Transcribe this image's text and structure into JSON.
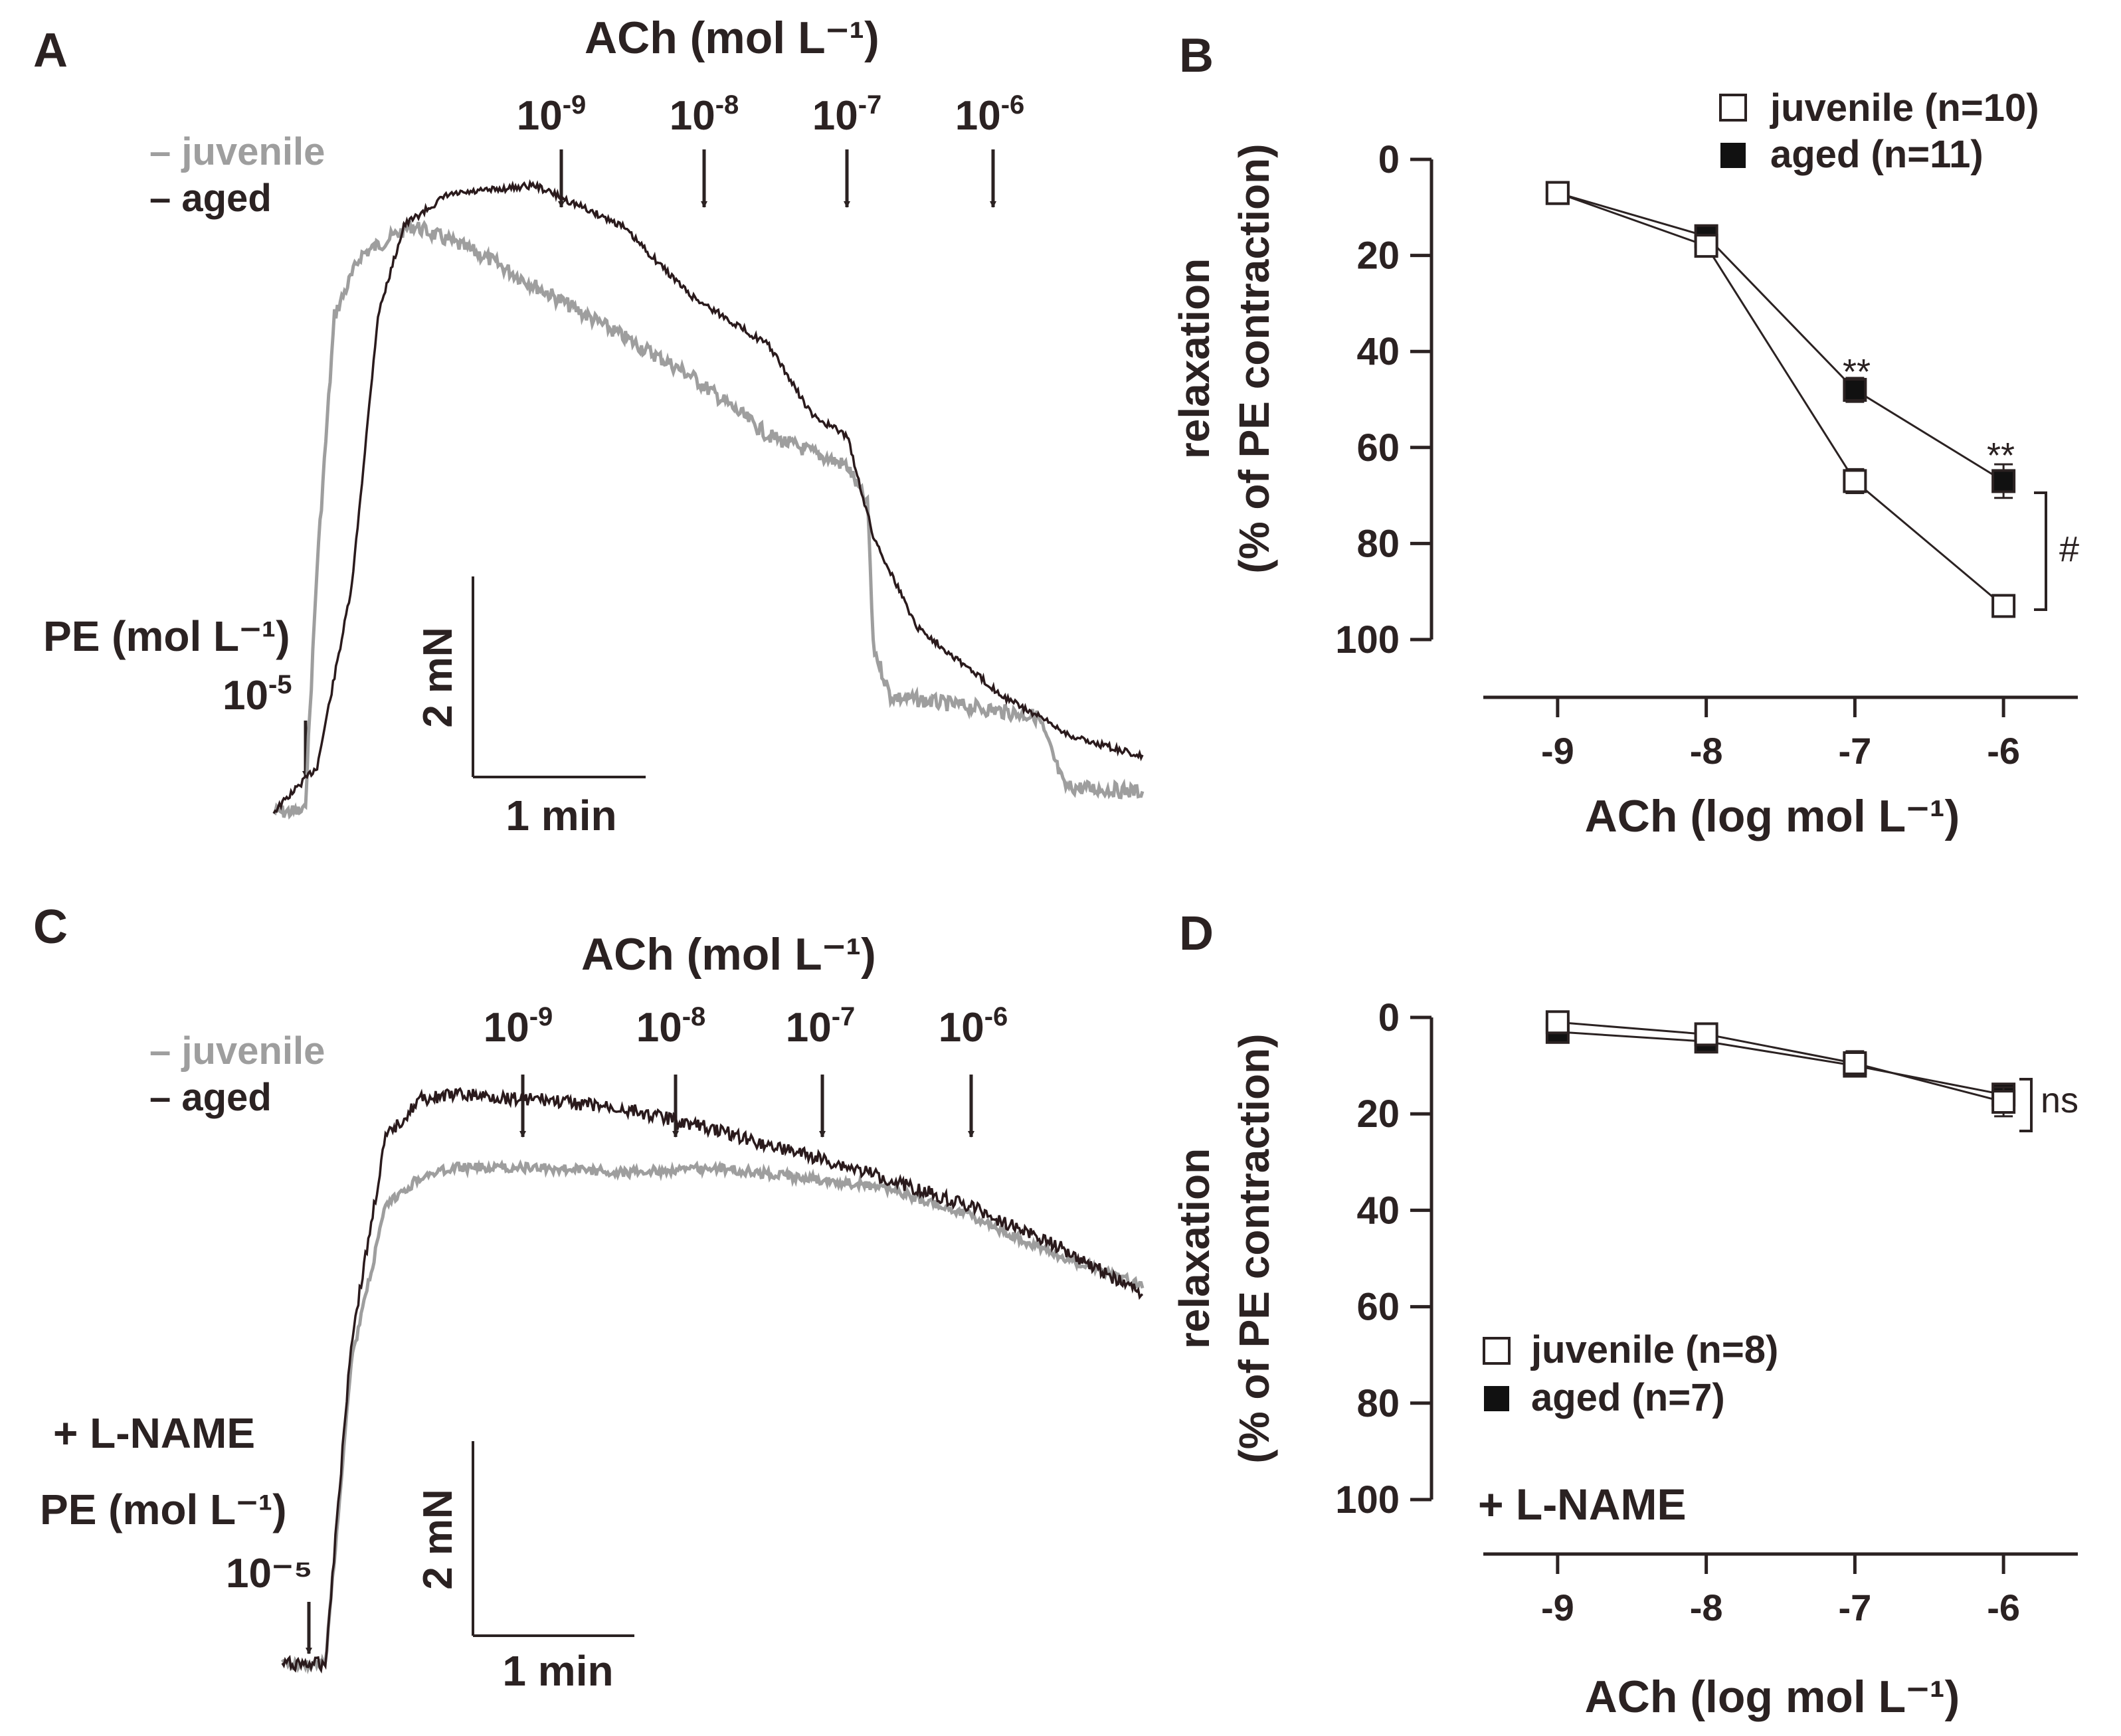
{
  "colors": {
    "juvenile": "#9e9e9e",
    "aged": "#2a1a1c",
    "text": "#2b2222"
  },
  "panels": {
    "A": {
      "letter": "A",
      "ach_title": "ACh (mol L⁻¹)",
      "ach_doses": [
        "10-9",
        "10-8",
        "10-7",
        "10-6"
      ],
      "legend": [
        "– juvenile",
        "– aged"
      ],
      "pe_label": "PE (mol L⁻¹)",
      "pe_dose": "10-5",
      "scale_y": "2 mN",
      "scale_x": "1 min"
    },
    "C": {
      "letter": "C",
      "ach_title": "ACh (mol L⁻¹)",
      "ach_doses": [
        "10-9",
        "10-8",
        "10-7",
        "10-6"
      ],
      "legend": [
        "– juvenile",
        "– aged"
      ],
      "treatment": "+ L-NAME",
      "pe_label": "PE (mol L⁻¹)",
      "pe_dose": "10⁻⁵",
      "scale_y": "2 mN",
      "scale_x": "1 min"
    },
    "B": {
      "letter": "B",
      "ylabel_line1": "relaxation",
      "ylabel_line2": "(% of PE contraction)",
      "xlabel": "ACh (log mol L⁻¹)",
      "legend": [
        "juvenile (n=10)",
        "aged (n=11)"
      ],
      "sig_stars": [
        "**",
        "**"
      ],
      "sig_bracket": "#"
    },
    "D": {
      "letter": "D",
      "ylabel_line1": "relaxation",
      "ylabel_line2": "(% of PE contraction)",
      "xlabel": "ACh (log mol L⁻¹)",
      "legend": [
        "juvenile (n=8)",
        "aged (n=7)"
      ],
      "treatment": "+ L-NAME",
      "sig_bracket": "ns"
    }
  },
  "chart_data": [
    {
      "panel": "A",
      "type": "line",
      "x_unit": "min",
      "y_unit": "mN",
      "series": [
        {
          "name": "juvenile",
          "x": [
            0,
            0.18,
            0.25,
            0.35,
            0.5,
            0.8,
            1.2,
            1.6,
            2.0,
            2.4,
            2.85,
            3.3,
            3.42,
            3.45,
            3.55,
            4.0,
            4.4,
            4.55,
            5.0
          ],
          "y": [
            0.05,
            0.05,
            2.5,
            5.0,
            5.6,
            5.9,
            5.6,
            5.2,
            4.8,
            4.4,
            3.8,
            3.5,
            3.1,
            1.7,
            1.2,
            1.1,
            1.0,
            0.3,
            0.25
          ]
        },
        {
          "name": "aged",
          "x": [
            0,
            0.25,
            0.45,
            0.6,
            0.75,
            1.0,
            1.5,
            2.0,
            2.4,
            2.85,
            3.1,
            3.3,
            3.45,
            3.7,
            4.2,
            4.6,
            5.0
          ],
          "y": [
            0.05,
            0.5,
            2.3,
            5.0,
            5.9,
            6.2,
            6.3,
            5.9,
            5.2,
            4.7,
            4.0,
            3.8,
            2.8,
            1.9,
            1.2,
            0.8,
            0.6
          ]
        }
      ]
    },
    {
      "panel": "B",
      "type": "line",
      "x": [
        -9,
        -8,
        -7,
        -6
      ],
      "xlim": [
        -9.5,
        -5.5
      ],
      "ylim": [
        100,
        0
      ],
      "yticks": [
        0,
        20,
        40,
        60,
        80,
        100
      ],
      "series": [
        {
          "name": "juvenile (n=10)",
          "values": [
            7,
            18,
            67,
            93
          ],
          "errors": [
            0,
            2,
            2.5,
            0
          ]
        },
        {
          "name": "aged (n=11)",
          "values": [
            7,
            16,
            48,
            67
          ],
          "errors": [
            0,
            2,
            2.5,
            3.5
          ]
        }
      ]
    },
    {
      "panel": "C",
      "type": "line",
      "x_unit": "min",
      "y_unit": "mN",
      "series": [
        {
          "name": "juvenile",
          "x": [
            0,
            0.25,
            0.4,
            0.6,
            0.8,
            1.0,
            1.5,
            2.0,
            2.5,
            3.0,
            3.5,
            4.0,
            4.5,
            5.0
          ],
          "y": [
            0.1,
            0.1,
            3.2,
            4.8,
            5.1,
            5.2,
            5.2,
            5.15,
            5.2,
            5.1,
            5.0,
            4.7,
            4.3,
            4.0
          ]
        },
        {
          "name": "aged",
          "x": [
            0,
            0.25,
            0.4,
            0.6,
            0.8,
            1.0,
            1.5,
            2.0,
            2.5,
            3.0,
            3.5,
            4.0,
            4.5,
            5.0
          ],
          "y": [
            0.1,
            0.1,
            3.4,
            5.5,
            5.9,
            5.95,
            5.9,
            5.8,
            5.6,
            5.35,
            5.1,
            4.8,
            4.4,
            3.9
          ]
        }
      ]
    },
    {
      "panel": "D",
      "type": "line",
      "x": [
        -9,
        -8,
        -7,
        -6
      ],
      "xlim": [
        -9.5,
        -5.5
      ],
      "ylim": [
        100,
        0
      ],
      "yticks": [
        0,
        20,
        40,
        60,
        80,
        100
      ],
      "series": [
        {
          "name": "juvenile (n=8)",
          "values": [
            1,
            3.5,
            9.5,
            17.5
          ],
          "errors": [
            0,
            0,
            2.5,
            3
          ]
        },
        {
          "name": "aged (n=7)",
          "values": [
            3,
            5,
            10,
            16
          ],
          "errors": [
            0,
            0,
            2,
            2
          ]
        }
      ]
    }
  ]
}
